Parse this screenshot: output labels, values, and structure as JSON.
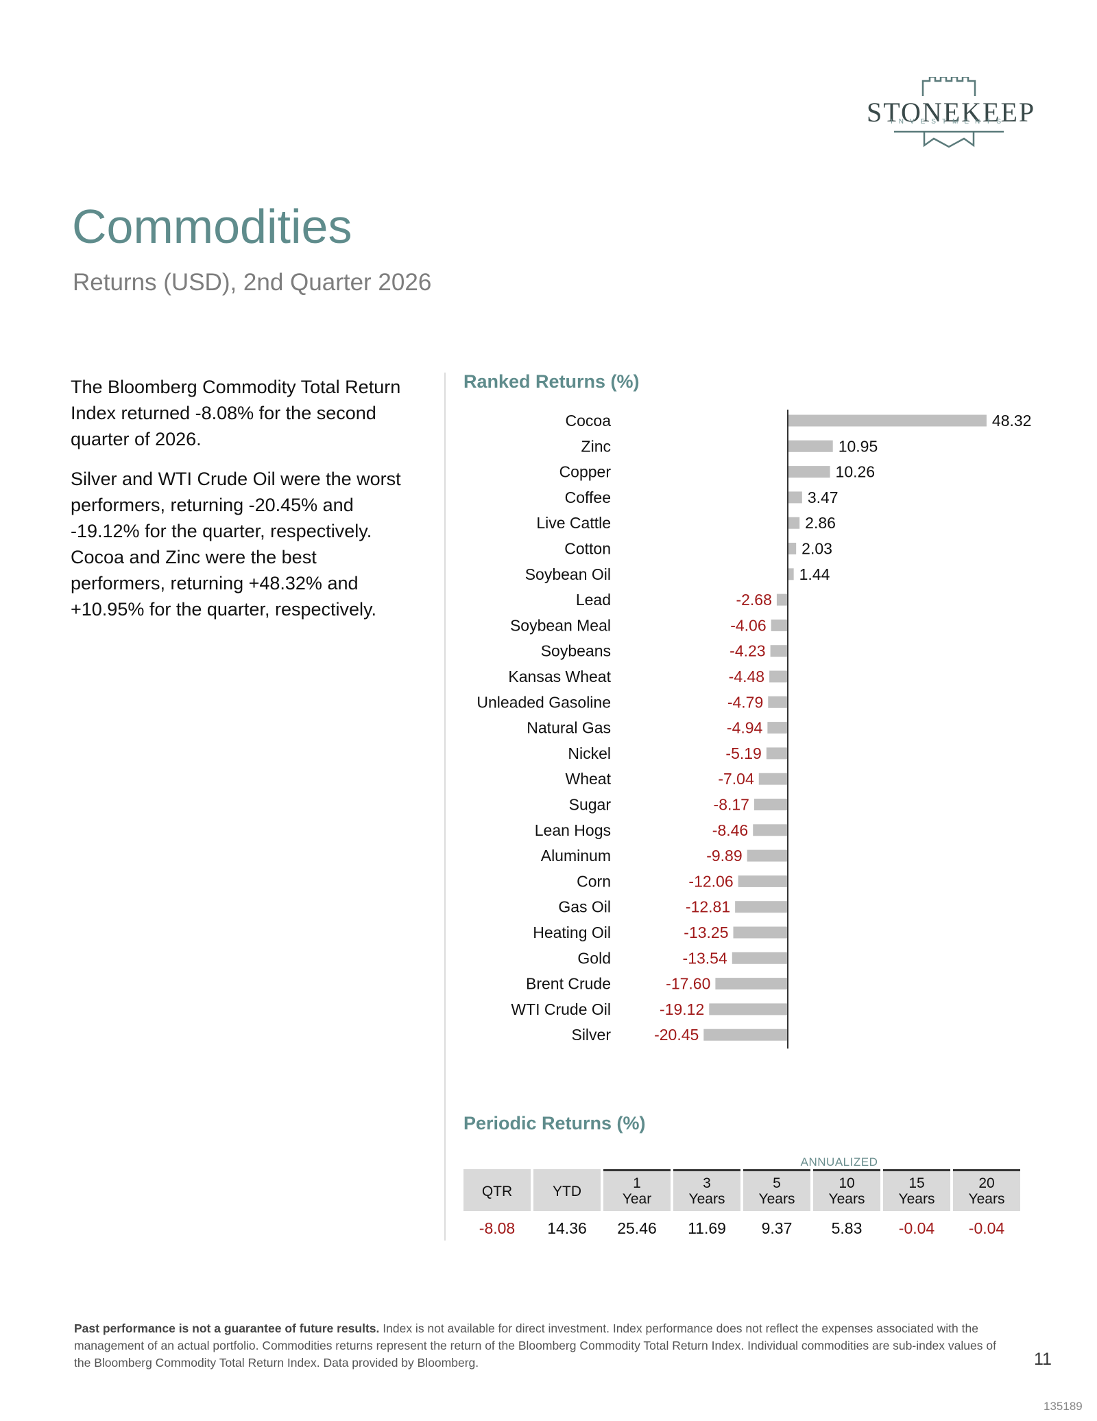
{
  "logo": {
    "word": "STONEKEEP",
    "sub": "INVESTMENTS"
  },
  "title": "Commodities",
  "subtitle": "Returns (USD), 2nd Quarter 2026",
  "intro": {
    "p1": "The Bloomberg Commodity Total Return Index returned -8.08% for the second quarter of 2026.",
    "p2": "Silver and WTI Crude Oil were the worst performers, returning -20.45% and -19.12% for the quarter, respectively. Cocoa and Zinc were the best performers, returning +48.32% and +10.95% for the quarter, respectively."
  },
  "ranked_heading": "Ranked Returns (%)",
  "periodic_heading": "Periodic Returns (%)",
  "chart_data": [
    {
      "type": "bar",
      "orientation": "horizontal",
      "title": "Ranked Returns (%)",
      "categories": [
        "Cocoa",
        "Zinc",
        "Copper",
        "Coffee",
        "Live Cattle",
        "Cotton",
        "Soybean Oil",
        "Lead",
        "Soybean Meal",
        "Soybeans",
        "Kansas Wheat",
        "Unleaded Gasoline",
        "Natural Gas",
        "Nickel",
        "Wheat",
        "Sugar",
        "Lean Hogs",
        "Aluminum",
        "Corn",
        "Gas Oil",
        "Heating Oil",
        "Gold",
        "Brent Crude",
        "WTI Crude Oil",
        "Silver"
      ],
      "values": [
        48.32,
        10.95,
        10.26,
        3.47,
        2.86,
        2.03,
        1.44,
        -2.68,
        -4.06,
        -4.23,
        -4.48,
        -4.79,
        -4.94,
        -5.19,
        -7.04,
        -8.17,
        -8.46,
        -9.89,
        -12.06,
        -12.81,
        -13.25,
        -13.54,
        -17.6,
        -19.12,
        -20.45
      ],
      "labels": [
        "48.32",
        "10.95",
        "10.26",
        "3.47",
        "2.86",
        "2.03",
        "1.44",
        "-2.68",
        "-4.06",
        "-4.23",
        "-4.48",
        "-4.79",
        "-4.94",
        "-5.19",
        "-7.04",
        "-8.17",
        "-8.46",
        "-9.89",
        "-12.06",
        "-12.81",
        "-13.25",
        "-13.54",
        "-17.60",
        "-19.12",
        "-20.45"
      ],
      "colors": {
        "bar": "#bfbfbf",
        "positive_label": "#111111",
        "negative_label": "#a11a1a",
        "axis": "#333333"
      }
    },
    {
      "type": "table",
      "title": "Periodic Returns (%)",
      "group_label": "ANNUALIZED",
      "columns": [
        {
          "line1": "QTR",
          "line2": ""
        },
        {
          "line1": "YTD",
          "line2": ""
        },
        {
          "line1": "1",
          "line2": "Year"
        },
        {
          "line1": "3",
          "line2": "Years"
        },
        {
          "line1": "5",
          "line2": "Years"
        },
        {
          "line1": "10",
          "line2": "Years"
        },
        {
          "line1": "15",
          "line2": "Years"
        },
        {
          "line1": "20",
          "line2": "Years"
        }
      ],
      "values": [
        "-8.08",
        "14.36",
        "25.46",
        "11.69",
        "9.37",
        "5.83",
        "-0.04",
        "-0.04"
      ]
    }
  ],
  "footnote": {
    "bold": "Past performance is not a guarantee of future results.",
    "text": " Index is not available for direct investment. Index performance does not reflect the expenses associated with the management of an actual portfolio. Commodities returns represent the return of the Bloomberg Commodity Total Return Index. Individual commodities are sub-index values of the Bloomberg Commodity Total Return Index. Data provided by Bloomberg."
  },
  "page_number": "11",
  "doc_code": "135189"
}
